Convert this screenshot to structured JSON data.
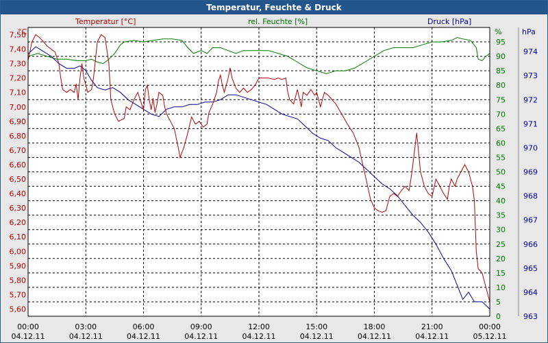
{
  "window": {
    "title": "Temperatur, Feuchte & Druck"
  },
  "colors": {
    "temperature": "#b40000",
    "humidity": "#007800",
    "pressure": "#00009a",
    "grid": "#000000",
    "background": "#ffffff"
  },
  "chart_data": {
    "type": "line",
    "title": "Temperatur, Feuchte & Druck",
    "x": {
      "range": [
        0,
        24
      ],
      "ticks": [
        {
          "value": 0,
          "time": "00:00",
          "date": "04.12.11"
        },
        {
          "value": 3,
          "time": "03:00",
          "date": "04.12.11"
        },
        {
          "value": 6,
          "time": "06:00",
          "date": "04.12.11"
        },
        {
          "value": 9,
          "time": "09:00",
          "date": "04.12.11"
        },
        {
          "value": 12,
          "time": "12:00",
          "date": "04.12.11"
        },
        {
          "value": 15,
          "time": "15:00",
          "date": "04.12.11"
        },
        {
          "value": 18,
          "time": "18:00",
          "date": "04.12.11"
        },
        {
          "value": 21,
          "time": "21:00",
          "date": "04.12.11"
        },
        {
          "value": 24,
          "time": "00:00",
          "date": "05.12.11"
        }
      ]
    },
    "axes": {
      "temperature": {
        "label": "Temperatur [°C]",
        "unit": "°C",
        "range": [
          5.55,
          7.55
        ],
        "ticks": [
          "7,50",
          "7,40",
          "7,30",
          "7,20",
          "7,10",
          "7,00",
          "6,90",
          "6,80",
          "6,70",
          "6,60",
          "6,50",
          "6,40",
          "6,30",
          "6,20",
          "6,10",
          "6,00",
          "5,90",
          "5,80",
          "5,70",
          "5,60"
        ]
      },
      "humidity": {
        "label": "rel. Feuchte [%]",
        "unit": "%",
        "range": [
          0,
          100
        ],
        "ticks": [
          "95",
          "90",
          "85",
          "80",
          "75",
          "70",
          "65",
          "60",
          "55",
          "50",
          "45",
          "40",
          "35",
          "30",
          "25",
          "20",
          "15",
          "10",
          "5",
          "0"
        ]
      },
      "pressure": {
        "label": "Druck [hPa]",
        "unit": "hPa",
        "range": [
          963,
          975
        ],
        "ticks": [
          "974",
          "973",
          "972",
          "971",
          "970",
          "969",
          "968",
          "967",
          "966",
          "965",
          "964",
          "963"
        ]
      }
    },
    "series": [
      {
        "name": "Temperatur",
        "axis": "temperature",
        "points": [
          [
            0,
            7.32
          ],
          [
            0.2,
            7.45
          ],
          [
            0.4,
            7.5
          ],
          [
            0.6,
            7.48
          ],
          [
            0.8,
            7.45
          ],
          [
            1,
            7.42
          ],
          [
            1.2,
            7.4
          ],
          [
            1.4,
            7.38
          ],
          [
            1.6,
            7.3
          ],
          [
            1.7,
            7.2
          ],
          [
            1.8,
            7.12
          ],
          [
            2,
            7.1
          ],
          [
            2.2,
            7.12
          ],
          [
            2.4,
            7.1
          ],
          [
            2.5,
            7.16
          ],
          [
            2.6,
            7.05
          ],
          [
            2.7,
            7.2
          ],
          [
            2.8,
            7.3
          ],
          [
            2.9,
            7.2
          ],
          [
            3,
            7.15
          ],
          [
            3.1,
            7.1
          ],
          [
            3.3,
            7.12
          ],
          [
            3.4,
            7.2
          ],
          [
            3.6,
            7.45
          ],
          [
            3.8,
            7.5
          ],
          [
            4,
            7.48
          ],
          [
            4.2,
            7.3
          ],
          [
            4.3,
            7.05
          ],
          [
            4.5,
            6.95
          ],
          [
            4.7,
            6.9
          ],
          [
            5,
            6.92
          ],
          [
            5.1,
            7.0
          ],
          [
            5.3,
            6.98
          ],
          [
            5.5,
            7.05
          ],
          [
            5.7,
            7.1
          ],
          [
            5.8,
            7.06
          ],
          [
            6,
            6.98
          ],
          [
            6.1,
            7.12
          ],
          [
            6.2,
            7.15
          ],
          [
            6.3,
            7.05
          ],
          [
            6.4,
            6.98
          ],
          [
            6.5,
            7.06
          ],
          [
            6.6,
            6.96
          ],
          [
            6.7,
            7.02
          ],
          [
            6.8,
            7.1
          ],
          [
            7,
            7.08
          ],
          [
            7.1,
            7.0
          ],
          [
            7.2,
            6.95
          ],
          [
            7.4,
            6.9
          ],
          [
            7.6,
            6.85
          ],
          [
            7.8,
            6.72
          ],
          [
            7.9,
            6.65
          ],
          [
            8.1,
            6.72
          ],
          [
            8.3,
            6.82
          ],
          [
            8.5,
            6.93
          ],
          [
            8.7,
            6.88
          ],
          [
            8.9,
            6.9
          ],
          [
            9.1,
            6.86
          ],
          [
            9.3,
            6.88
          ],
          [
            9.4,
            6.96
          ],
          [
            9.6,
            7.02
          ],
          [
            9.8,
            7.1
          ],
          [
            9.9,
            7.18
          ],
          [
            10,
            7.22
          ],
          [
            10.1,
            7.15
          ],
          [
            10.2,
            7.1
          ],
          [
            10.4,
            7.2
          ],
          [
            10.5,
            7.27
          ],
          [
            10.6,
            7.2
          ],
          [
            10.8,
            7.13
          ],
          [
            11,
            7.1
          ],
          [
            11.2,
            7.13
          ],
          [
            11.4,
            7.1
          ],
          [
            11.6,
            7.12
          ],
          [
            11.8,
            7.15
          ],
          [
            12,
            7.2
          ],
          [
            12.2,
            7.2
          ],
          [
            12.5,
            7.2
          ],
          [
            12.8,
            7.19
          ],
          [
            13,
            7.2
          ],
          [
            13.2,
            7.19
          ],
          [
            13.4,
            7.2
          ],
          [
            13.5,
            7.1
          ],
          [
            13.6,
            7.05
          ],
          [
            13.8,
            7.02
          ],
          [
            14,
            7.12
          ],
          [
            14.1,
            7.06
          ],
          [
            14.2,
            7.0
          ],
          [
            14.3,
            7.1
          ],
          [
            14.5,
            7.08
          ],
          [
            14.7,
            7.12
          ],
          [
            14.9,
            7.08
          ],
          [
            15,
            7.1
          ],
          [
            15.2,
            7.0
          ],
          [
            15.4,
            7.1
          ],
          [
            15.6,
            7.08
          ],
          [
            15.8,
            7.05
          ],
          [
            16,
            7.02
          ],
          [
            16.3,
            6.95
          ],
          [
            16.6,
            6.88
          ],
          [
            16.9,
            6.82
          ],
          [
            17.2,
            6.72
          ],
          [
            17.4,
            6.6
          ],
          [
            17.6,
            6.48
          ],
          [
            17.8,
            6.36
          ],
          [
            18,
            6.3
          ],
          [
            18.2,
            6.28
          ],
          [
            18.4,
            6.27
          ],
          [
            18.6,
            6.28
          ],
          [
            18.8,
            6.38
          ],
          [
            19,
            6.4
          ],
          [
            19.2,
            6.38
          ],
          [
            19.4,
            6.42
          ],
          [
            19.6,
            6.45
          ],
          [
            19.8,
            6.42
          ],
          [
            19.9,
            6.5
          ],
          [
            20,
            6.6
          ],
          [
            20.2,
            6.82
          ],
          [
            20.4,
            6.55
          ],
          [
            20.6,
            6.45
          ],
          [
            20.8,
            6.4
          ],
          [
            21,
            6.38
          ],
          [
            21.2,
            6.5
          ],
          [
            21.4,
            6.45
          ],
          [
            21.6,
            6.4
          ],
          [
            21.8,
            6.36
          ],
          [
            21.9,
            6.45
          ],
          [
            22,
            6.5
          ],
          [
            22.2,
            6.45
          ],
          [
            22.3,
            6.5
          ],
          [
            22.5,
            6.55
          ],
          [
            22.7,
            6.6
          ],
          [
            22.9,
            6.55
          ],
          [
            23.1,
            6.45
          ],
          [
            23.2,
            6.35
          ],
          [
            23.3,
            6.0
          ],
          [
            23.4,
            5.88
          ],
          [
            23.6,
            5.85
          ],
          [
            23.8,
            5.75
          ],
          [
            23.9,
            5.7
          ],
          [
            24,
            5.65
          ]
        ]
      },
      {
        "name": "rel. Feuchte",
        "axis": "humidity",
        "points": [
          [
            0,
            90
          ],
          [
            0.5,
            91
          ],
          [
            1,
            90
          ],
          [
            1.5,
            89
          ],
          [
            2,
            89
          ],
          [
            2.5,
            88.5
          ],
          [
            3,
            88.5
          ],
          [
            3.3,
            89
          ],
          [
            3.6,
            88
          ],
          [
            3.9,
            87.5
          ],
          [
            4.2,
            89
          ],
          [
            4.5,
            91
          ],
          [
            4.8,
            94
          ],
          [
            5,
            95
          ],
          [
            5.5,
            95.5
          ],
          [
            6,
            95
          ],
          [
            6.5,
            95.5
          ],
          [
            7,
            96
          ],
          [
            7.5,
            96
          ],
          [
            8,
            95.5
          ],
          [
            8.3,
            93
          ],
          [
            8.6,
            91
          ],
          [
            9,
            92
          ],
          [
            9.3,
            91
          ],
          [
            9.6,
            93
          ],
          [
            10,
            93
          ],
          [
            10.4,
            92
          ],
          [
            10.8,
            91
          ],
          [
            11.2,
            92
          ],
          [
            11.6,
            92
          ],
          [
            12,
            92
          ],
          [
            12.5,
            92
          ],
          [
            13,
            91
          ],
          [
            13.5,
            90
          ],
          [
            14,
            88
          ],
          [
            14.5,
            86
          ],
          [
            15,
            85
          ],
          [
            15.5,
            84
          ],
          [
            16,
            85
          ],
          [
            16.5,
            85
          ],
          [
            17,
            86
          ],
          [
            17.5,
            88
          ],
          [
            18,
            90
          ],
          [
            18.5,
            92
          ],
          [
            19,
            93
          ],
          [
            19.5,
            93
          ],
          [
            20,
            93
          ],
          [
            20.5,
            94
          ],
          [
            21,
            95
          ],
          [
            21.5,
            95
          ],
          [
            22,
            95.5
          ],
          [
            22.3,
            96.5
          ],
          [
            22.6,
            96
          ],
          [
            23,
            95.5
          ],
          [
            23.3,
            93
          ],
          [
            23.4,
            89
          ],
          [
            23.6,
            88.5
          ],
          [
            23.8,
            90
          ],
          [
            24,
            91
          ]
        ]
      },
      {
        "name": "Druck",
        "axis": "pressure",
        "points": [
          [
            0,
            973.9
          ],
          [
            0.4,
            974.2
          ],
          [
            0.8,
            974.0
          ],
          [
            1.2,
            973.8
          ],
          [
            1.6,
            973.5
          ],
          [
            2,
            973.3
          ],
          [
            2.4,
            973.3
          ],
          [
            2.7,
            973.4
          ],
          [
            3,
            973.2
          ],
          [
            3.3,
            972.8
          ],
          [
            3.6,
            972.5
          ],
          [
            4,
            972.4
          ],
          [
            4.4,
            972.5
          ],
          [
            4.8,
            972.3
          ],
          [
            5.2,
            972.0
          ],
          [
            5.6,
            971.8
          ],
          [
            6,
            971.6
          ],
          [
            6.4,
            971.4
          ],
          [
            6.8,
            971.3
          ],
          [
            7.2,
            971.6
          ],
          [
            7.6,
            971.7
          ],
          [
            8,
            971.7
          ],
          [
            8.4,
            971.8
          ],
          [
            8.8,
            971.8
          ],
          [
            9.2,
            971.9
          ],
          [
            9.6,
            971.9
          ],
          [
            10,
            972.0
          ],
          [
            10.4,
            972.2
          ],
          [
            10.8,
            972.2
          ],
          [
            11.2,
            972.1
          ],
          [
            11.6,
            972.0
          ],
          [
            12,
            971.9
          ],
          [
            12.4,
            971.8
          ],
          [
            12.8,
            971.6
          ],
          [
            13.2,
            971.4
          ],
          [
            13.6,
            971.3
          ],
          [
            14,
            971.2
          ],
          [
            14.4,
            970.9
          ],
          [
            14.8,
            970.6
          ],
          [
            15.2,
            970.4
          ],
          [
            15.6,
            970.3
          ],
          [
            16,
            970.0
          ],
          [
            16.4,
            969.8
          ],
          [
            16.8,
            969.6
          ],
          [
            17.2,
            969.4
          ],
          [
            17.6,
            969.1
          ],
          [
            18,
            968.8
          ],
          [
            18.4,
            968.5
          ],
          [
            18.8,
            968.3
          ],
          [
            19.2,
            968.0
          ],
          [
            19.6,
            967.6
          ],
          [
            20,
            967.2
          ],
          [
            20.4,
            966.9
          ],
          [
            20.8,
            966.5
          ],
          [
            21.2,
            966.0
          ],
          [
            21.6,
            965.4
          ],
          [
            22,
            964.9
          ],
          [
            22.3,
            964.3
          ],
          [
            22.6,
            963.7
          ],
          [
            22.9,
            964.0
          ],
          [
            23.2,
            963.6
          ],
          [
            23.6,
            963.6
          ],
          [
            24,
            963.3
          ]
        ]
      }
    ]
  }
}
